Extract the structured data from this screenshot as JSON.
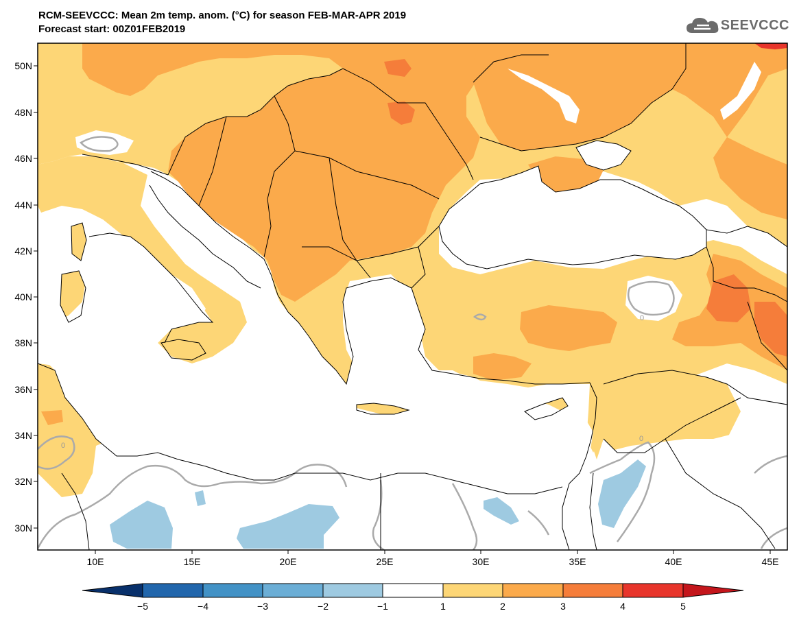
{
  "header": {
    "title": "RCM-SEEVCCC: Mean 2m temp. anom. (°C) for season FEB-MAR-APR 2019",
    "subtitle": "Forecast start: 00Z01FEB2019"
  },
  "logo": {
    "text": "SEEVCCC",
    "icon": "cloud-icon"
  },
  "map": {
    "lat_labels": [
      "50N",
      "48N",
      "46N",
      "44N",
      "42N",
      "40N",
      "38N",
      "36N",
      "34N",
      "32N",
      "30N"
    ],
    "lon_labels": [
      "10E",
      "15E",
      "20E",
      "25E",
      "30E",
      "35E",
      "40E",
      "45E"
    ],
    "contour_labels": [
      "0",
      "0",
      "0"
    ],
    "colors": {
      "land_white": "#ffffff",
      "sea": "#ffffff",
      "anom_1_2": "#fdd676",
      "anom_2_3": "#fbaa4b",
      "anom_3_4": "#f57d3a",
      "anom_4_5": "#e8352b",
      "anom_neg_1_2": "#9ecae1",
      "contour": "#aaaaaa",
      "border": "#000000"
    }
  },
  "colorbar": {
    "labels": [
      "−5",
      "−4",
      "−3",
      "−2",
      "−1",
      "1",
      "2",
      "3",
      "4",
      "5"
    ],
    "colors": [
      "#08306b",
      "#2166ac",
      "#4292c6",
      "#6baed6",
      "#9ecae1",
      "#ffffff",
      "#fdd676",
      "#fbaa4b",
      "#f57d3a",
      "#e8352b",
      "#c4161c"
    ]
  }
}
